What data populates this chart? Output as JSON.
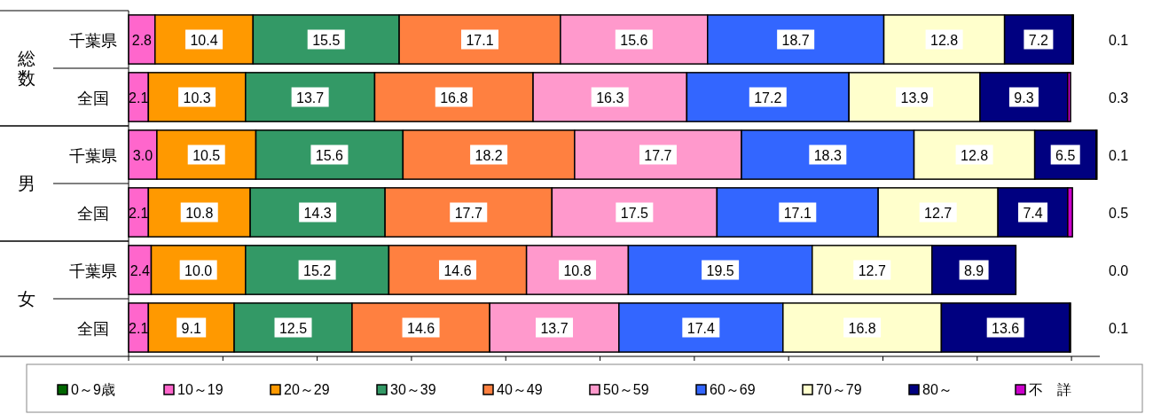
{
  "chart_data": {
    "type": "bar",
    "orientation": "horizontal",
    "stacked": true,
    "legend": "bottom",
    "grid": false,
    "categories": [
      "千葉県",
      "全国",
      "千葉県",
      "全国",
      "千葉県",
      "全国"
    ],
    "annotations": [
      "総数",
      "男",
      "女"
    ],
    "xlim": [
      0,
      103
    ],
    "xticks": [
      {
        "value": 0,
        "label": null
      },
      {
        "value": 10,
        "label": null
      },
      {
        "value": 20,
        "label": null
      },
      {
        "value": 30,
        "label": null
      },
      {
        "value": 40,
        "label": null
      },
      {
        "value": 50,
        "label": null
      },
      {
        "value": 60,
        "label": null
      },
      {
        "value": 70,
        "label": null
      },
      {
        "value": 80,
        "label": null
      },
      {
        "value": 90,
        "label": null
      },
      {
        "value": 100,
        "label": null
      }
    ],
    "series": [
      {
        "name": "0～9歳",
        "color": "#006600",
        "values": [
          null,
          null,
          null,
          null,
          null,
          null
        ],
        "value_labels": [
          null,
          null,
          null,
          null,
          null,
          null
        ]
      },
      {
        "name": "10～19",
        "color": "#ff66cc",
        "values": [
          2.8,
          2.1,
          3.0,
          2.1,
          2.4,
          2.1
        ],
        "value_labels": [
          "2.8",
          "2.1",
          "3.0",
          "2.1",
          "2.4",
          "2.1"
        ]
      },
      {
        "name": "20～29",
        "color": "#ff9900",
        "values": [
          10.4,
          10.3,
          10.5,
          10.8,
          10.0,
          9.1
        ],
        "value_labels": [
          "10.4",
          "10.3",
          "10.5",
          "10.8",
          "10.0",
          "9.1"
        ]
      },
      {
        "name": "30～39",
        "color": "#339966",
        "values": [
          15.5,
          13.7,
          15.6,
          14.3,
          15.2,
          12.5
        ],
        "value_labels": [
          "15.5",
          "13.7",
          "15.6",
          "14.3",
          "15.2",
          "12.5"
        ]
      },
      {
        "name": "40～49",
        "color": "#ff8040",
        "values": [
          17.1,
          16.8,
          18.2,
          17.7,
          14.6,
          14.6
        ],
        "value_labels": [
          "17.1",
          "16.8",
          "18.2",
          "17.7",
          "14.6",
          "14.6"
        ]
      },
      {
        "name": "50～59",
        "color": "#ff99cc",
        "values": [
          15.6,
          16.3,
          17.7,
          17.5,
          10.8,
          13.7
        ],
        "value_labels": [
          "15.6",
          "16.3",
          "17.7",
          "17.5",
          "10.8",
          "13.7"
        ]
      },
      {
        "name": "60～69",
        "color": "#3366ff",
        "values": [
          18.7,
          17.2,
          18.3,
          17.1,
          19.5,
          17.4
        ],
        "value_labels": [
          "18.7",
          "17.2",
          "18.3",
          "17.1",
          "19.5",
          "17.4"
        ]
      },
      {
        "name": "70～79",
        "color": "#ffffcc",
        "values": [
          12.8,
          13.9,
          12.8,
          12.7,
          12.7,
          16.8
        ],
        "value_labels": [
          "12.8",
          "13.9",
          "12.8",
          "12.7",
          "12.7",
          "16.8"
        ]
      },
      {
        "name": "80～",
        "color": "#000080",
        "values": [
          7.2,
          9.3,
          6.5,
          7.4,
          8.9,
          13.6
        ],
        "value_labels": [
          "7.2",
          "9.3",
          "6.5",
          "7.4",
          "8.9",
          "13.6"
        ]
      },
      {
        "name": "不　詳",
        "color": "#cc00cc",
        "values": [
          0.1,
          0.3,
          0.1,
          0.5,
          0.0,
          0.1
        ],
        "value_labels": [
          "0.1",
          "0.3",
          "0.1",
          "0.5",
          "0.0",
          "0.1"
        ]
      }
    ]
  }
}
